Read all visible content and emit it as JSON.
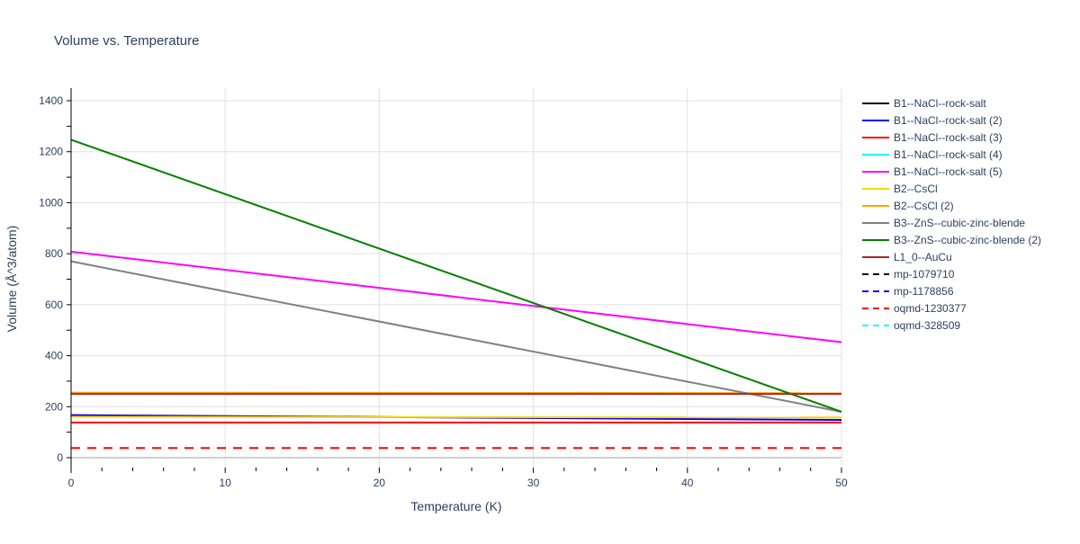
{
  "chart_data": {
    "type": "line",
    "title": "Volume vs. Temperature",
    "xlabel": "Temperature (K)",
    "ylabel": "Volume (Å^3/atom)",
    "xlim": [
      0,
      50
    ],
    "ylim": [
      -50,
      1440
    ],
    "xticks": [
      0,
      10,
      20,
      30,
      40,
      50
    ],
    "yticks": [
      0,
      200,
      400,
      600,
      800,
      1000,
      1200,
      1400
    ],
    "grid": true,
    "legend_placement": "right",
    "series": [
      {
        "name": "B1--NaCl--rock-salt",
        "color": "#000000",
        "dash": false,
        "x": [
          0,
          50
        ],
        "y": [
          null,
          null
        ]
      },
      {
        "name": "B1--NaCl--rock-salt (2)",
        "color": "#0000ff",
        "dash": false,
        "x": [
          0,
          50
        ],
        "y": [
          167,
          148
        ]
      },
      {
        "name": "B1--NaCl--rock-salt (3)",
        "color": "#ff0000",
        "dash": false,
        "x": [
          0,
          50
        ],
        "y": [
          138,
          138
        ]
      },
      {
        "name": "B1--NaCl--rock-salt (4)",
        "color": "#00ffff",
        "dash": false,
        "x": [
          0,
          50
        ],
        "y": [
          null,
          null
        ]
      },
      {
        "name": "B1--NaCl--rock-salt (5)",
        "color": "#ff00ff",
        "dash": false,
        "x": [
          0,
          50
        ],
        "y": [
          808,
          453
        ]
      },
      {
        "name": "B2--CsCl",
        "color": "#ffd700",
        "dash": false,
        "x": [
          0,
          50
        ],
        "y": [
          160,
          158
        ]
      },
      {
        "name": "B2--CsCl (2)",
        "color": "#ffa500",
        "dash": false,
        "x": [
          0,
          50
        ],
        "y": [
          255,
          253
        ]
      },
      {
        "name": "B3--ZnS--cubic-zinc-blende",
        "color": "#808080",
        "dash": false,
        "x": [
          0,
          50
        ],
        "y": [
          770,
          180
        ]
      },
      {
        "name": "B3--ZnS--cubic-zinc-blende (2)",
        "color": "#008000",
        "dash": false,
        "x": [
          0,
          50
        ],
        "y": [
          1247,
          180
        ]
      },
      {
        "name": "L1_0--AuCu",
        "color": "#a52a2a",
        "dash": false,
        "x": [
          0,
          50
        ],
        "y": [
          250,
          250
        ]
      },
      {
        "name": "mp-1079710",
        "color": "#000000",
        "dash": true,
        "x": [
          0,
          50
        ],
        "y": [
          null,
          null
        ]
      },
      {
        "name": "mp-1178856",
        "color": "#0000ff",
        "dash": true,
        "x": [
          0,
          50
        ],
        "y": [
          null,
          null
        ]
      },
      {
        "name": "oqmd-1230377",
        "color": "#ff0000",
        "dash": true,
        "x": [
          0,
          50
        ],
        "y": [
          38,
          38
        ]
      },
      {
        "name": "oqmd-328509",
        "color": "#00ffff",
        "dash": true,
        "x": [
          0,
          50
        ],
        "y": [
          null,
          null
        ]
      }
    ]
  }
}
